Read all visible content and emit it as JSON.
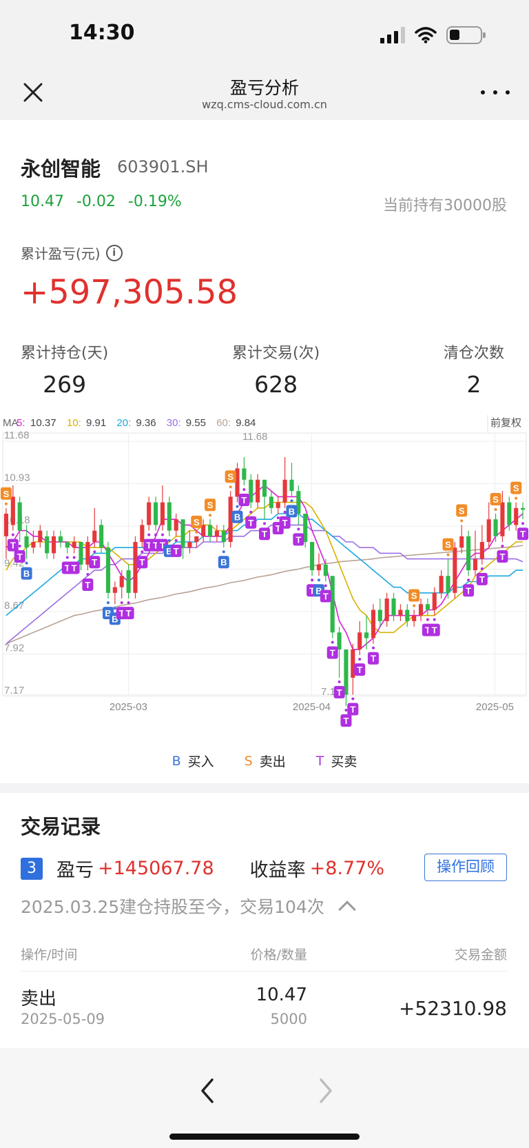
{
  "status": {
    "time": "14:30"
  },
  "nav": {
    "title": "盈亏分析",
    "url": "wzq.cms-cloud.com.cn"
  },
  "stock": {
    "name": "永创智能",
    "code": "603901.SH",
    "price": "10.47",
    "change": "-0.02",
    "change_pct": "-0.19%",
    "holding": "当前持有30000股"
  },
  "pnl": {
    "label": "累计盈亏(元)",
    "value": "+597,305.58"
  },
  "stats": [
    {
      "label": "累计持仓(天)",
      "value": "269"
    },
    {
      "label": "累计交易(次)",
      "value": "628"
    },
    {
      "label": "清仓次数",
      "value": "2"
    }
  ],
  "chart_data": {
    "type": "candlestick",
    "ma_legend": [
      {
        "key": "MA",
        "value": "",
        "color": "#666666"
      },
      {
        "key": "5:",
        "value": "10.37",
        "color": "#d61fd6"
      },
      {
        "key": "10:",
        "value": "9.91",
        "color": "#d9b000"
      },
      {
        "key": "20:",
        "value": "9.36",
        "color": "#1aa9e0"
      },
      {
        "key": "30:",
        "value": "9.55",
        "color": "#9a6ee8"
      },
      {
        "key": "60:",
        "value": "9.84",
        "color": "#b8a295"
      }
    ],
    "adjust_label": "前复权",
    "y_ticks": [
      "11.68",
      "10.93",
      "10.18",
      "9.42",
      "8.67",
      "7.92",
      "7.17"
    ],
    "x_ticks": [
      "2025-03",
      "2025-04",
      "2025-05"
    ],
    "high_label": "11.68",
    "low_label": "7.17",
    "ylim": [
      7.17,
      11.68
    ],
    "candles": [
      {
        "o": 10.0,
        "c": 10.4,
        "h": 10.5,
        "l": 9.6
      },
      {
        "o": 10.2,
        "c": 10.7,
        "h": 10.9,
        "l": 10.1
      },
      {
        "o": 10.6,
        "c": 10.1,
        "h": 10.7,
        "l": 9.9
      },
      {
        "o": 10.0,
        "c": 9.8,
        "h": 10.2,
        "l": 9.6
      },
      {
        "o": 9.8,
        "c": 9.9,
        "h": 10.1,
        "l": 9.7
      },
      {
        "o": 9.9,
        "c": 10.1,
        "h": 10.2,
        "l": 9.8
      },
      {
        "o": 10.0,
        "c": 9.7,
        "h": 10.1,
        "l": 9.6
      },
      {
        "o": 9.7,
        "c": 10.0,
        "h": 10.1,
        "l": 9.6
      },
      {
        "o": 10.0,
        "c": 9.9,
        "h": 10.1,
        "l": 9.8
      },
      {
        "o": 9.9,
        "c": 9.8,
        "h": 9.9,
        "l": 9.7
      },
      {
        "o": 9.8,
        "c": 9.9,
        "h": 10.0,
        "l": 9.7
      },
      {
        "o": 9.9,
        "c": 9.5,
        "h": 9.9,
        "l": 9.4
      },
      {
        "o": 9.5,
        "c": 9.9,
        "h": 10.0,
        "l": 9.4
      },
      {
        "o": 9.9,
        "c": 10.1,
        "h": 10.5,
        "l": 9.8
      },
      {
        "o": 10.2,
        "c": 9.8,
        "h": 10.3,
        "l": 9.7
      },
      {
        "o": 9.8,
        "c": 9.0,
        "h": 9.9,
        "l": 8.9
      },
      {
        "o": 9.0,
        "c": 9.1,
        "h": 9.2,
        "l": 8.8
      },
      {
        "o": 9.1,
        "c": 9.3,
        "h": 9.4,
        "l": 8.9
      },
      {
        "o": 9.4,
        "c": 9.0,
        "h": 9.5,
        "l": 8.9
      },
      {
        "o": 9.0,
        "c": 9.9,
        "h": 10.0,
        "l": 8.9
      },
      {
        "o": 9.9,
        "c": 10.2,
        "h": 10.3,
        "l": 9.8
      },
      {
        "o": 10.2,
        "c": 10.6,
        "h": 10.7,
        "l": 10.1
      },
      {
        "o": 10.6,
        "c": 10.2,
        "h": 10.7,
        "l": 10.1
      },
      {
        "o": 10.2,
        "c": 10.6,
        "h": 10.9,
        "l": 10.1
      },
      {
        "o": 10.6,
        "c": 10.1,
        "h": 10.7,
        "l": 10.0
      },
      {
        "o": 10.1,
        "c": 10.3,
        "h": 10.4,
        "l": 10.0
      },
      {
        "o": 10.3,
        "c": 9.8,
        "h": 10.3,
        "l": 9.6
      },
      {
        "o": 9.8,
        "c": 9.9,
        "h": 10.1,
        "l": 9.7
      },
      {
        "o": 9.9,
        "c": 10.0,
        "h": 10.0,
        "l": 9.8
      },
      {
        "o": 10.0,
        "c": 10.2,
        "h": 10.3,
        "l": 9.9
      },
      {
        "o": 10.2,
        "c": 10.0,
        "h": 10.3,
        "l": 9.9
      },
      {
        "o": 10.0,
        "c": 10.1,
        "h": 10.2,
        "l": 9.9
      },
      {
        "o": 10.1,
        "c": 9.9,
        "h": 10.2,
        "l": 9.8
      },
      {
        "o": 9.9,
        "c": 10.7,
        "h": 10.8,
        "l": 9.8
      },
      {
        "o": 10.7,
        "c": 11.2,
        "h": 11.3,
        "l": 10.6
      },
      {
        "o": 11.2,
        "c": 11.0,
        "h": 11.4,
        "l": 10.9
      },
      {
        "o": 11.0,
        "c": 10.6,
        "h": 11.1,
        "l": 10.5
      },
      {
        "o": 10.6,
        "c": 11.0,
        "h": 11.1,
        "l": 10.5
      },
      {
        "o": 11.0,
        "c": 10.7,
        "h": 11.0,
        "l": 10.3
      },
      {
        "o": 10.7,
        "c": 10.5,
        "h": 10.8,
        "l": 10.4
      },
      {
        "o": 10.5,
        "c": 10.6,
        "h": 10.7,
        "l": 10.4
      },
      {
        "o": 10.6,
        "c": 11.0,
        "h": 11.4,
        "l": 10.5
      },
      {
        "o": 11.0,
        "c": 10.8,
        "h": 11.3,
        "l": 10.7
      },
      {
        "o": 10.8,
        "c": 10.4,
        "h": 10.9,
        "l": 10.2
      },
      {
        "o": 10.4,
        "c": 9.9,
        "h": 10.4,
        "l": 9.8
      },
      {
        "o": 9.9,
        "c": 9.4,
        "h": 9.9,
        "l": 9.3
      },
      {
        "o": 9.4,
        "c": 9.5,
        "h": 9.7,
        "l": 9.3
      },
      {
        "o": 9.5,
        "c": 9.3,
        "h": 9.6,
        "l": 9.2
      },
      {
        "o": 9.3,
        "c": 8.3,
        "h": 9.3,
        "l": 8.2
      },
      {
        "o": 8.3,
        "c": 8.0,
        "h": 8.4,
        "l": 7.5
      },
      {
        "o": 8.0,
        "c": 7.2,
        "h": 8.0,
        "l": 7.0
      },
      {
        "o": 7.5,
        "c": 8.0,
        "h": 8.1,
        "l": 7.2
      },
      {
        "o": 8.0,
        "c": 8.3,
        "h": 8.5,
        "l": 7.9
      },
      {
        "o": 8.3,
        "c": 8.2,
        "h": 8.6,
        "l": 8.0
      },
      {
        "o": 8.2,
        "c": 8.7,
        "h": 8.8,
        "l": 8.1
      },
      {
        "o": 8.7,
        "c": 8.5,
        "h": 8.9,
        "l": 8.4
      },
      {
        "o": 8.5,
        "c": 8.9,
        "h": 9.0,
        "l": 8.4
      },
      {
        "o": 8.9,
        "c": 8.6,
        "h": 9.0,
        "l": 8.5
      },
      {
        "o": 8.6,
        "c": 8.7,
        "h": 8.8,
        "l": 8.5
      },
      {
        "o": 8.7,
        "c": 8.5,
        "h": 8.8,
        "l": 8.4
      },
      {
        "o": 8.5,
        "c": 8.6,
        "h": 8.7,
        "l": 8.4
      },
      {
        "o": 8.6,
        "c": 8.8,
        "h": 8.9,
        "l": 8.5
      },
      {
        "o": 8.8,
        "c": 8.7,
        "h": 8.9,
        "l": 8.6
      },
      {
        "o": 8.7,
        "c": 9.0,
        "h": 9.1,
        "l": 8.6
      },
      {
        "o": 9.0,
        "c": 9.3,
        "h": 9.4,
        "l": 8.9
      },
      {
        "o": 9.3,
        "c": 9.0,
        "h": 9.6,
        "l": 8.9
      },
      {
        "o": 9.0,
        "c": 9.8,
        "h": 9.9,
        "l": 8.9
      },
      {
        "o": 9.8,
        "c": 10.0,
        "h": 10.2,
        "l": 9.7
      },
      {
        "o": 10.0,
        "c": 9.4,
        "h": 10.1,
        "l": 9.3
      },
      {
        "o": 9.4,
        "c": 9.6,
        "h": 10.1,
        "l": 9.3
      },
      {
        "o": 9.6,
        "c": 9.9,
        "h": 10.2,
        "l": 9.5
      },
      {
        "o": 9.9,
        "c": 10.3,
        "h": 10.6,
        "l": 9.8
      },
      {
        "o": 10.3,
        "c": 10.0,
        "h": 10.4,
        "l": 9.9
      },
      {
        "o": 10.0,
        "c": 10.6,
        "h": 10.8,
        "l": 9.9
      },
      {
        "o": 10.6,
        "c": 10.2,
        "h": 10.7,
        "l": 10.1
      },
      {
        "o": 10.2,
        "c": 10.5,
        "h": 10.6,
        "l": 10.1
      },
      {
        "o": 10.5,
        "c": 10.47,
        "h": 10.6,
        "l": 10.3
      }
    ],
    "ma5": [
      9.8,
      9.9,
      10.1,
      10.1,
      10.0,
      10.0,
      9.9,
      9.9,
      9.9,
      9.9,
      9.8,
      9.8,
      9.8,
      9.9,
      9.9,
      9.7,
      9.5,
      9.3,
      9.2,
      9.3,
      9.5,
      9.7,
      10.0,
      10.3,
      10.3,
      10.3,
      10.2,
      10.2,
      10.1,
      10.0,
      10.0,
      10.0,
      10.0,
      10.2,
      10.4,
      10.6,
      10.7,
      10.8,
      10.9,
      10.8,
      10.7,
      10.7,
      10.7,
      10.7,
      10.5,
      10.1,
      9.8,
      9.5,
      9.0,
      8.5,
      8.3,
      8.0,
      8.0,
      8.1,
      8.2,
      8.4,
      8.6,
      8.6,
      8.6,
      8.6,
      8.6,
      8.6,
      8.7,
      8.7,
      8.8,
      9.0,
      9.2,
      9.4,
      9.6,
      9.7,
      9.7,
      9.8,
      10.0,
      10.1,
      10.2,
      10.3,
      10.4
    ],
    "ma10": [
      9.4,
      9.6,
      9.7,
      9.8,
      9.9,
      9.9,
      9.9,
      9.9,
      9.9,
      9.9,
      9.9,
      9.9,
      9.8,
      9.8,
      9.8,
      9.8,
      9.7,
      9.6,
      9.5,
      9.5,
      9.5,
      9.6,
      9.7,
      9.8,
      9.9,
      10.0,
      10.0,
      10.1,
      10.1,
      10.2,
      10.2,
      10.1,
      10.1,
      10.1,
      10.2,
      10.3,
      10.4,
      10.5,
      10.5,
      10.6,
      10.6,
      10.6,
      10.6,
      10.6,
      10.6,
      10.5,
      10.3,
      10.1,
      9.8,
      9.5,
      9.2,
      8.9,
      8.7,
      8.6,
      8.4,
      8.3,
      8.3,
      8.3,
      8.4,
      8.5,
      8.6,
      8.6,
      8.6,
      8.6,
      8.7,
      8.8,
      8.9,
      9.0,
      9.1,
      9.3,
      9.4,
      9.5,
      9.6,
      9.7,
      9.8,
      9.9,
      9.9
    ],
    "ma20": [
      8.6,
      8.7,
      8.8,
      8.9,
      9.0,
      9.1,
      9.2,
      9.3,
      9.4,
      9.5,
      9.5,
      9.6,
      9.6,
      9.7,
      9.7,
      9.7,
      9.8,
      9.8,
      9.8,
      9.8,
      9.8,
      9.8,
      9.8,
      9.8,
      9.8,
      9.9,
      9.9,
      9.9,
      9.9,
      10.0,
      10.0,
      10.0,
      10.0,
      10.1,
      10.1,
      10.2,
      10.2,
      10.3,
      10.3,
      10.3,
      10.4,
      10.4,
      10.4,
      10.4,
      10.3,
      10.3,
      10.2,
      10.1,
      10.0,
      9.9,
      9.8,
      9.7,
      9.6,
      9.5,
      9.4,
      9.3,
      9.2,
      9.1,
      9.1,
      9.0,
      9.0,
      9.0,
      9.0,
      9.0,
      9.0,
      9.0,
      9.1,
      9.1,
      9.2,
      9.2,
      9.2,
      9.3,
      9.3,
      9.3,
      9.3,
      9.4,
      9.4
    ],
    "ma30": [
      8.1,
      8.2,
      8.3,
      8.4,
      8.5,
      8.6,
      8.7,
      8.8,
      8.9,
      9.0,
      9.1,
      9.2,
      9.3,
      9.4,
      9.4,
      9.5,
      9.5,
      9.6,
      9.6,
      9.6,
      9.7,
      9.7,
      9.7,
      9.7,
      9.8,
      9.8,
      9.8,
      9.8,
      9.8,
      9.9,
      9.9,
      9.9,
      9.9,
      10.0,
      10.0,
      10.0,
      10.1,
      10.1,
      10.1,
      10.2,
      10.2,
      10.2,
      10.2,
      10.2,
      10.2,
      10.1,
      10.1,
      10.1,
      10.0,
      10.0,
      9.9,
      9.9,
      9.8,
      9.8,
      9.8,
      9.7,
      9.7,
      9.7,
      9.7,
      9.6,
      9.6,
      9.6,
      9.6,
      9.6,
      9.6,
      9.6,
      9.6,
      9.6,
      9.6,
      9.6,
      9.6,
      9.6,
      9.6,
      9.6,
      9.6,
      9.6,
      9.55
    ],
    "ma60": [
      8.1,
      8.15,
      8.2,
      8.25,
      8.3,
      8.35,
      8.4,
      8.45,
      8.5,
      8.55,
      8.6,
      8.62,
      8.65,
      8.68,
      8.7,
      8.72,
      8.75,
      8.78,
      8.8,
      8.82,
      8.85,
      8.88,
      8.9,
      8.92,
      8.95,
      8.98,
      9.0,
      9.02,
      9.05,
      9.08,
      9.1,
      9.12,
      9.15,
      9.18,
      9.2,
      9.22,
      9.25,
      9.28,
      9.3,
      9.32,
      9.35,
      9.38,
      9.4,
      9.42,
      9.45,
      9.47,
      9.5,
      9.52,
      9.53,
      9.55,
      9.56,
      9.57,
      9.58,
      9.59,
      9.6,
      9.62,
      9.63,
      9.64,
      9.65,
      9.66,
      9.67,
      9.68,
      9.69,
      9.7,
      9.71,
      9.72,
      9.73,
      9.74,
      9.75,
      9.76,
      9.77,
      9.78,
      9.79,
      9.8,
      9.81,
      9.82,
      9.84
    ],
    "markers": [
      {
        "i": 0,
        "t": "S"
      },
      {
        "i": 1,
        "t": "T"
      },
      {
        "i": 2,
        "t": "T"
      },
      {
        "i": 3,
        "t": "B"
      },
      {
        "i": 9,
        "t": "T"
      },
      {
        "i": 10,
        "t": "T"
      },
      {
        "i": 12,
        "t": "T"
      },
      {
        "i": 13,
        "t": "T"
      },
      {
        "i": 15,
        "t": "B"
      },
      {
        "i": 16,
        "t": "B"
      },
      {
        "i": 17,
        "t": "T"
      },
      {
        "i": 18,
        "t": "T"
      },
      {
        "i": 20,
        "t": "T"
      },
      {
        "i": 21,
        "t": "T"
      },
      {
        "i": 22,
        "t": "T"
      },
      {
        "i": 23,
        "t": "T"
      },
      {
        "i": 24,
        "t": "B"
      },
      {
        "i": 25,
        "t": "T"
      },
      {
        "i": 28,
        "t": "S"
      },
      {
        "i": 30,
        "t": "S"
      },
      {
        "i": 32,
        "t": "B"
      },
      {
        "i": 33,
        "t": "S"
      },
      {
        "i": 34,
        "t": "B"
      },
      {
        "i": 35,
        "t": "T"
      },
      {
        "i": 36,
        "t": "T"
      },
      {
        "i": 38,
        "t": "T"
      },
      {
        "i": 40,
        "t": "T"
      },
      {
        "i": 41,
        "t": "T"
      },
      {
        "i": 42,
        "t": "B"
      },
      {
        "i": 43,
        "t": "T"
      },
      {
        "i": 45,
        "t": "T"
      },
      {
        "i": 46,
        "t": "B"
      },
      {
        "i": 47,
        "t": "T"
      },
      {
        "i": 48,
        "t": "T"
      },
      {
        "i": 49,
        "t": "T"
      },
      {
        "i": 50,
        "t": "T"
      },
      {
        "i": 51,
        "t": "T"
      },
      {
        "i": 52,
        "t": "T"
      },
      {
        "i": 54,
        "t": "T"
      },
      {
        "i": 60,
        "t": "S"
      },
      {
        "i": 62,
        "t": "T"
      },
      {
        "i": 63,
        "t": "T"
      },
      {
        "i": 65,
        "t": "S"
      },
      {
        "i": 67,
        "t": "S"
      },
      {
        "i": 68,
        "t": "T"
      },
      {
        "i": 70,
        "t": "T"
      },
      {
        "i": 72,
        "t": "S"
      },
      {
        "i": 73,
        "t": "T"
      },
      {
        "i": 75,
        "t": "S"
      },
      {
        "i": 76,
        "t": "T"
      }
    ]
  },
  "legend": [
    {
      "letter": "B",
      "label": "买入",
      "color": "#3b74d8"
    },
    {
      "letter": "S",
      "label": "卖出",
      "color": "#f28c28"
    },
    {
      "letter": "T",
      "label": "买卖",
      "color": "#b02fe0"
    }
  ],
  "records": {
    "title": "交易记录",
    "index": "3",
    "pnl_label": "盈亏",
    "pnl_value": "+145067.78",
    "rate_label": "收益率",
    "rate_value": "+8.77%",
    "review_button": "操作回顾",
    "desc": "2025.03.25建仓持股至今，交易104次",
    "headers": {
      "op": "操作/时间",
      "price": "价格/数量",
      "amount": "交易金额"
    },
    "rows": [
      {
        "op": "卖出",
        "date": "2025-05-09",
        "price": "10.47",
        "qty": "5000",
        "amount": "+52310.98"
      }
    ]
  }
}
